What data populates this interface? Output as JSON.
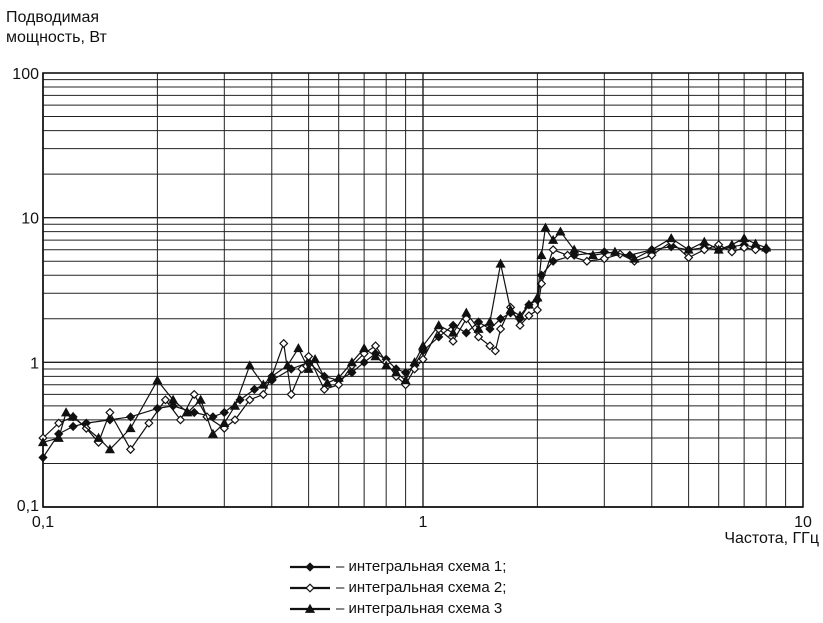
{
  "chart_data": {
    "type": "line",
    "ylabel": [
      "Подводимая",
      "мощность, Вт"
    ],
    "xlabel": "Частота, ГГц",
    "xscale": "log",
    "yscale": "log",
    "xlim": [
      0.1,
      10
    ],
    "ylim": [
      0.1,
      100
    ],
    "xticks": [
      {
        "value": 0.1,
        "label": "0,1"
      },
      {
        "value": 1,
        "label": "1"
      },
      {
        "value": 10,
        "label": "10"
      }
    ],
    "yticks": [
      {
        "value": 0.1,
        "label": "0,1"
      },
      {
        "value": 1,
        "label": "1"
      },
      {
        "value": 10,
        "label": "10"
      },
      {
        "value": 100,
        "label": "100"
      }
    ],
    "grid": true,
    "legend_position": "bottom-center",
    "series": [
      {
        "name": "– интегральная схема 1;",
        "marker": "diamond-filled",
        "points": [
          [
            0.1,
            0.22
          ],
          [
            0.11,
            0.32
          ],
          [
            0.12,
            0.36
          ],
          [
            0.13,
            0.38
          ],
          [
            0.15,
            0.4
          ],
          [
            0.17,
            0.42
          ],
          [
            0.2,
            0.48
          ],
          [
            0.22,
            0.5
          ],
          [
            0.25,
            0.45
          ],
          [
            0.28,
            0.42
          ],
          [
            0.3,
            0.45
          ],
          [
            0.33,
            0.55
          ],
          [
            0.36,
            0.65
          ],
          [
            0.4,
            0.75
          ],
          [
            0.45,
            0.9
          ],
          [
            0.5,
            1.0
          ],
          [
            0.55,
            0.8
          ],
          [
            0.6,
            0.75
          ],
          [
            0.65,
            0.85
          ],
          [
            0.7,
            1.0
          ],
          [
            0.75,
            1.15
          ],
          [
            0.8,
            1.05
          ],
          [
            0.85,
            0.9
          ],
          [
            0.9,
            0.85
          ],
          [
            0.95,
            0.95
          ],
          [
            1.0,
            1.2
          ],
          [
            1.1,
            1.5
          ],
          [
            1.2,
            1.8
          ],
          [
            1.3,
            1.6
          ],
          [
            1.4,
            1.9
          ],
          [
            1.5,
            1.7
          ],
          [
            1.6,
            2.0
          ],
          [
            1.7,
            2.2
          ],
          [
            1.8,
            2.0
          ],
          [
            1.9,
            2.5
          ],
          [
            2.0,
            2.7
          ],
          [
            2.05,
            4.0
          ],
          [
            2.2,
            5.0
          ],
          [
            2.5,
            5.5
          ],
          [
            3.0,
            5.8
          ],
          [
            3.5,
            5.5
          ],
          [
            4.0,
            6.0
          ],
          [
            4.5,
            6.3
          ],
          [
            5.0,
            6.0
          ],
          [
            5.5,
            6.2
          ],
          [
            6.0,
            6.0
          ],
          [
            6.5,
            6.3
          ],
          [
            7.0,
            6.5
          ],
          [
            7.5,
            6.2
          ],
          [
            8.0,
            6.0
          ]
        ]
      },
      {
        "name": "– интегральная схема 2;",
        "marker": "diamond-open",
        "points": [
          [
            0.1,
            0.3
          ],
          [
            0.11,
            0.38
          ],
          [
            0.12,
            0.42
          ],
          [
            0.13,
            0.35
          ],
          [
            0.14,
            0.28
          ],
          [
            0.15,
            0.45
          ],
          [
            0.17,
            0.25
          ],
          [
            0.19,
            0.38
          ],
          [
            0.21,
            0.55
          ],
          [
            0.23,
            0.4
          ],
          [
            0.25,
            0.6
          ],
          [
            0.27,
            0.42
          ],
          [
            0.3,
            0.35
          ],
          [
            0.32,
            0.4
          ],
          [
            0.35,
            0.55
          ],
          [
            0.38,
            0.6
          ],
          [
            0.4,
            0.8
          ],
          [
            0.43,
            1.35
          ],
          [
            0.45,
            0.6
          ],
          [
            0.48,
            0.9
          ],
          [
            0.5,
            1.1
          ],
          [
            0.55,
            0.65
          ],
          [
            0.6,
            0.7
          ],
          [
            0.65,
            0.95
          ],
          [
            0.7,
            1.15
          ],
          [
            0.75,
            1.3
          ],
          [
            0.8,
            1.0
          ],
          [
            0.85,
            0.8
          ],
          [
            0.9,
            0.7
          ],
          [
            0.95,
            0.9
          ],
          [
            1.0,
            1.05
          ],
          [
            1.1,
            1.7
          ],
          [
            1.2,
            1.4
          ],
          [
            1.3,
            2.0
          ],
          [
            1.4,
            1.5
          ],
          [
            1.5,
            1.3
          ],
          [
            1.55,
            1.2
          ],
          [
            1.6,
            1.7
          ],
          [
            1.7,
            2.4
          ],
          [
            1.8,
            1.8
          ],
          [
            1.9,
            2.1
          ],
          [
            2.0,
            2.3
          ],
          [
            2.05,
            3.5
          ],
          [
            2.2,
            6.0
          ],
          [
            2.4,
            5.5
          ],
          [
            2.7,
            5.0
          ],
          [
            3.0,
            5.2
          ],
          [
            3.3,
            5.6
          ],
          [
            3.6,
            5.0
          ],
          [
            4.0,
            5.5
          ],
          [
            4.5,
            6.8
          ],
          [
            5.0,
            5.3
          ],
          [
            5.5,
            6.0
          ],
          [
            6.0,
            6.5
          ],
          [
            6.5,
            5.8
          ],
          [
            7.0,
            6.2
          ],
          [
            7.5,
            6.0
          ],
          [
            8.0,
            6.1
          ]
        ]
      },
      {
        "name": "– интегральная схема 3",
        "marker": "triangle-filled",
        "points": [
          [
            0.1,
            0.28
          ],
          [
            0.11,
            0.3
          ],
          [
            0.115,
            0.45
          ],
          [
            0.12,
            0.42
          ],
          [
            0.14,
            0.3
          ],
          [
            0.15,
            0.25
          ],
          [
            0.17,
            0.35
          ],
          [
            0.2,
            0.75
          ],
          [
            0.22,
            0.55
          ],
          [
            0.24,
            0.45
          ],
          [
            0.26,
            0.55
          ],
          [
            0.28,
            0.32
          ],
          [
            0.3,
            0.38
          ],
          [
            0.32,
            0.5
          ],
          [
            0.35,
            0.95
          ],
          [
            0.38,
            0.7
          ],
          [
            0.4,
            0.8
          ],
          [
            0.44,
            0.95
          ],
          [
            0.47,
            1.25
          ],
          [
            0.5,
            0.9
          ],
          [
            0.52,
            1.05
          ],
          [
            0.56,
            0.72
          ],
          [
            0.6,
            0.78
          ],
          [
            0.65,
            1.0
          ],
          [
            0.7,
            1.25
          ],
          [
            0.75,
            1.1
          ],
          [
            0.8,
            0.95
          ],
          [
            0.85,
            0.85
          ],
          [
            0.9,
            0.75
          ],
          [
            0.95,
            1.0
          ],
          [
            1.0,
            1.3
          ],
          [
            1.1,
            1.8
          ],
          [
            1.2,
            1.6
          ],
          [
            1.3,
            2.2
          ],
          [
            1.4,
            1.7
          ],
          [
            1.5,
            1.9
          ],
          [
            1.6,
            4.8
          ],
          [
            1.7,
            2.3
          ],
          [
            1.8,
            2.1
          ],
          [
            1.9,
            2.5
          ],
          [
            2.0,
            2.8
          ],
          [
            2.05,
            5.5
          ],
          [
            2.1,
            8.5
          ],
          [
            2.2,
            7.0
          ],
          [
            2.3,
            8.0
          ],
          [
            2.5,
            6.0
          ],
          [
            2.8,
            5.5
          ],
          [
            3.2,
            5.8
          ],
          [
            3.6,
            5.2
          ],
          [
            4.0,
            6.0
          ],
          [
            4.5,
            7.2
          ],
          [
            5.0,
            6.0
          ],
          [
            5.5,
            6.8
          ],
          [
            6.0,
            6.0
          ],
          [
            6.5,
            6.5
          ],
          [
            7.0,
            7.2
          ],
          [
            7.5,
            6.6
          ],
          [
            8.0,
            6.2
          ]
        ]
      }
    ]
  }
}
